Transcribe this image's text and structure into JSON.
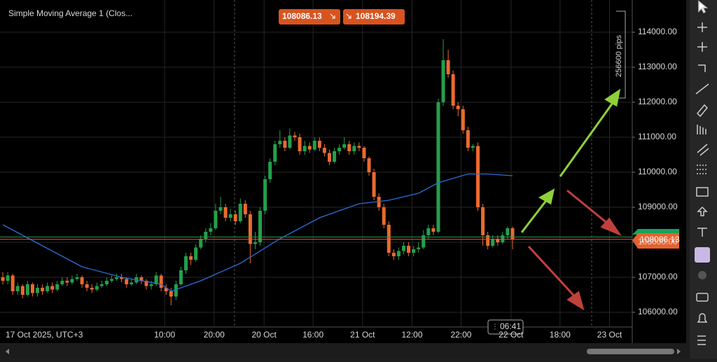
{
  "chart_data": {
    "type": "candlestick",
    "title": "Simple Moving Average 1 (Clos...",
    "x_axis_start_label": "17 Oct 2025, UTC+3",
    "bid_badge": "108086.13",
    "ask_badge": "108194.39",
    "price_label": "108086.13",
    "pips_label": "256600 pips",
    "time_label": "06:41",
    "up_color": "#22a04b",
    "down_color": "#ea6a2f",
    "grid": true,
    "ylim": [
      105580,
      114920
    ],
    "yticks": [
      {
        "value": 106000,
        "label": "106000.00"
      },
      {
        "value": 107000,
        "label": "107000.00"
      },
      {
        "value": 108000,
        "label": "108000.00"
      },
      {
        "value": 109000,
        "label": "109000.00"
      },
      {
        "value": 110000,
        "label": "110000.00"
      },
      {
        "value": 111000,
        "label": "111000.00"
      },
      {
        "value": 112000,
        "label": "112000.00"
      },
      {
        "value": 113000,
        "label": "113000.00"
      },
      {
        "value": 114000,
        "label": "114000.00"
      }
    ],
    "xlim": [
      -0.57,
      127.2
    ],
    "xticks": [
      {
        "value": 32.7,
        "label": "10:00"
      },
      {
        "value": 42.7,
        "label": "20:00"
      },
      {
        "value": 52.8,
        "label": "20 Oct"
      },
      {
        "value": 62.7,
        "label": "16:00"
      },
      {
        "value": 72.7,
        "label": "21 Oct"
      },
      {
        "value": 82.7,
        "label": "12:00"
      },
      {
        "value": 92.6,
        "label": "22:00"
      },
      {
        "value": 102.7,
        "label": "22 Oct"
      },
      {
        "value": 112.6,
        "label": "18:00"
      },
      {
        "value": 122.6,
        "label": "23 Oct"
      }
    ],
    "horizontal_line": 108150,
    "open": [
      107000,
      106900,
      107050,
      106600,
      106750,
      106500,
      106800,
      106550,
      106700,
      106600,
      106750,
      106650,
      106800,
      106900,
      106850,
      106950,
      107000,
      106800,
      106700,
      106650,
      106750,
      106800,
      106900,
      106950,
      107000,
      106950,
      106800,
      106850,
      107000,
      106900,
      106750,
      106800,
      107050,
      106700,
      106600,
      106450,
      106800,
      107200,
      107600,
      107500,
      107850,
      108100,
      108300,
      108400,
      108900,
      109000,
      108700,
      108800,
      108600,
      109100,
      108800,
      107950,
      108000,
      108900,
      109800,
      110300,
      110800,
      110900,
      110700,
      111050,
      111000,
      110600,
      110750,
      110650,
      110900,
      110700,
      110550,
      110300,
      110600,
      110700,
      110800,
      110600,
      110750,
      110700,
      110400,
      110000,
      109300,
      109000,
      108500,
      107700,
      107600,
      107750,
      107900,
      107700,
      107800,
      107850,
      108200,
      108400,
      108300,
      112000,
      113200,
      112800,
      111900,
      111800,
      111200,
      110700,
      110750,
      109000,
      108200,
      107900,
      108100,
      108000,
      108200,
      108400
    ],
    "high": [
      107150,
      107150,
      107100,
      106850,
      106800,
      106900,
      106850,
      106800,
      106800,
      106850,
      106850,
      106900,
      107000,
      107000,
      107050,
      107100,
      107050,
      106900,
      106800,
      106850,
      106900,
      107000,
      107050,
      107100,
      107100,
      107000,
      106950,
      107100,
      107050,
      106950,
      106900,
      107150,
      107100,
      106800,
      106700,
      106900,
      107300,
      107700,
      107700,
      107950,
      108200,
      108400,
      108550,
      109100,
      109300,
      109100,
      108950,
      108900,
      109250,
      109200,
      108900,
      108300,
      109000,
      109900,
      110400,
      110900,
      111200,
      111000,
      111250,
      111150,
      111100,
      110900,
      110850,
      111000,
      111000,
      110800,
      110650,
      110700,
      110800,
      111000,
      110900,
      110850,
      110850,
      110750,
      110450,
      110100,
      109400,
      109100,
      108600,
      107800,
      107850,
      108000,
      108000,
      107900,
      108000,
      108350,
      108500,
      108500,
      112100,
      113800,
      113500,
      112900,
      112000,
      111900,
      111300,
      110800,
      110850,
      109100,
      108300,
      108200,
      108200,
      108300,
      108450,
      108450
    ],
    "low": [
      106800,
      106800,
      106500,
      106500,
      106400,
      106450,
      106450,
      106450,
      106500,
      106550,
      106550,
      106600,
      106750,
      106750,
      106800,
      106900,
      106700,
      106600,
      106550,
      106600,
      106700,
      106750,
      106850,
      106900,
      106850,
      106700,
      106750,
      106800,
      106800,
      106650,
      106650,
      106750,
      106600,
      106500,
      106200,
      106350,
      106750,
      107100,
      107350,
      107450,
      107800,
      108000,
      108200,
      108350,
      108800,
      108600,
      108600,
      108500,
      108550,
      108700,
      107400,
      107800,
      107900,
      108800,
      109700,
      110200,
      110700,
      110600,
      110650,
      110900,
      110500,
      110500,
      110550,
      110600,
      110600,
      110450,
      110200,
      110250,
      110500,
      110650,
      110500,
      110500,
      110600,
      110300,
      109900,
      109200,
      108900,
      108400,
      107600,
      107500,
      107500,
      107650,
      107600,
      107600,
      107700,
      107800,
      108100,
      108200,
      108250,
      111900,
      112700,
      111800,
      111600,
      111100,
      110600,
      110600,
      108900,
      107900,
      107800,
      107850,
      107900,
      107950,
      108100,
      107800
    ],
    "close": [
      106900,
      107050,
      106600,
      106750,
      106500,
      106800,
      106550,
      106700,
      106600,
      106750,
      106650,
      106800,
      106900,
      106850,
      106950,
      107000,
      106800,
      106700,
      106650,
      106750,
      106800,
      106900,
      106950,
      107000,
      106950,
      106800,
      106850,
      107000,
      106900,
      106750,
      106800,
      107050,
      106700,
      106600,
      106450,
      106800,
      107200,
      107600,
      107500,
      107850,
      108100,
      108300,
      108400,
      108900,
      109000,
      108700,
      108800,
      108600,
      109100,
      108800,
      107950,
      108000,
      108900,
      109800,
      110300,
      110800,
      110900,
      110700,
      111050,
      111000,
      110600,
      110750,
      110650,
      110900,
      110700,
      110550,
      110300,
      110600,
      110700,
      110800,
      110600,
      110750,
      110700,
      110400,
      110000,
      109300,
      109000,
      108500,
      107700,
      107600,
      107750,
      107900,
      107700,
      107800,
      107850,
      108200,
      108400,
      108300,
      112000,
      113200,
      112800,
      111900,
      111800,
      111200,
      110700,
      110750,
      109000,
      108200,
      107900,
      108100,
      108000,
      108200,
      108400,
      108086.13
    ],
    "series": [
      {
        "name": "Simple Moving Average 1 (Clos...",
        "color": "#2a6fd6",
        "x": [
          0,
          8,
          16,
          24,
          32,
          34,
          40,
          48,
          56,
          64,
          72,
          78,
          84,
          88,
          94,
          98,
          103
        ],
        "values": [
          108500,
          107900,
          107300,
          107000,
          106800,
          106600,
          106900,
          107400,
          108100,
          108700,
          109100,
          109200,
          109400,
          109700,
          109950,
          109950,
          109900
        ]
      }
    ]
  }
}
